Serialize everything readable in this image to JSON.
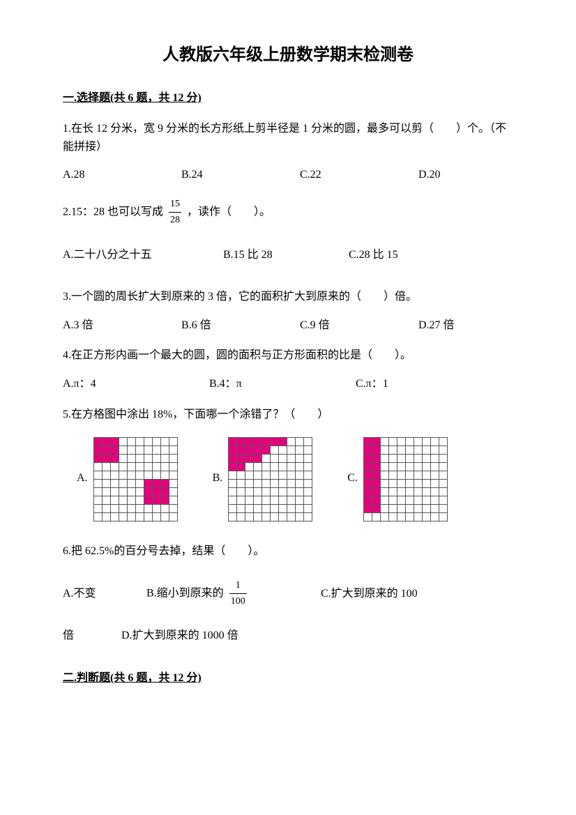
{
  "title": "人教版六年级上册数学期末检测卷",
  "section1": {
    "header": "一.选择题(共 6 题，共 12 分)",
    "q1": {
      "text": "1.在长 12 分米，宽 9 分米的长方形纸上剪半径是 1 分米的圆，最多可以剪（　　）个。（不能拼接）",
      "a": "A.28",
      "b": "B.24",
      "c": "C.22",
      "d": "D.20"
    },
    "q2": {
      "pre": "2.15：28 也可以写成",
      "num": "15",
      "den": "28",
      "post": "，读作（　　）。",
      "a": "A.二十八分之十五",
      "b": "B.15 比 28",
      "c": "C.28 比 15"
    },
    "q3": {
      "text": "3.一个圆的周长扩大到原来的 3 倍，它的面积扩大到原来的（　　）倍。",
      "a": "A.3 倍",
      "b": "B.6 倍",
      "c": "C.9 倍",
      "d": "D.27 倍"
    },
    "q4": {
      "text": "4.在正方形内画一个最大的圆，圆的面积与正方形面积的比是（　　）。",
      "a": "A.π：4",
      "b": "B.4：π",
      "c": "C.π：1"
    },
    "q5": {
      "text": "5.在方格图中涂出 18%，下面哪一个涂错了？（　　）",
      "labelA": "A.",
      "labelB": "B.",
      "labelC": "C.",
      "gridA": {
        "rows": 10,
        "cols": 10,
        "fill_color": "#e6007e",
        "cells": [
          [
            0,
            0
          ],
          [
            0,
            1
          ],
          [
            0,
            2
          ],
          [
            1,
            0
          ],
          [
            1,
            1
          ],
          [
            1,
            2
          ],
          [
            2,
            0
          ],
          [
            2,
            1
          ],
          [
            2,
            2
          ],
          [
            5,
            6
          ],
          [
            5,
            7
          ],
          [
            5,
            8
          ],
          [
            6,
            6
          ],
          [
            6,
            7
          ],
          [
            6,
            8
          ],
          [
            7,
            6
          ],
          [
            7,
            7
          ],
          [
            7,
            8
          ]
        ]
      },
      "gridB": {
        "rows": 10,
        "cols": 10,
        "fill_color": "#e6007e",
        "cells": [
          [
            0,
            0
          ],
          [
            0,
            1
          ],
          [
            0,
            2
          ],
          [
            0,
            3
          ],
          [
            0,
            4
          ],
          [
            0,
            5
          ],
          [
            0,
            6
          ],
          [
            1,
            0
          ],
          [
            1,
            1
          ],
          [
            1,
            2
          ],
          [
            1,
            3
          ],
          [
            1,
            4
          ],
          [
            2,
            0
          ],
          [
            2,
            1
          ],
          [
            2,
            2
          ],
          [
            2,
            3
          ],
          [
            3,
            0
          ],
          [
            3,
            1
          ]
        ]
      },
      "gridC": {
        "rows": 10,
        "cols": 10,
        "fill_color": "#e6007e",
        "cells": [
          [
            0,
            0
          ],
          [
            0,
            1
          ],
          [
            1,
            0
          ],
          [
            1,
            1
          ],
          [
            2,
            0
          ],
          [
            2,
            1
          ],
          [
            3,
            0
          ],
          [
            3,
            1
          ],
          [
            4,
            0
          ],
          [
            4,
            1
          ],
          [
            5,
            0
          ],
          [
            5,
            1
          ],
          [
            6,
            0
          ],
          [
            6,
            1
          ],
          [
            7,
            0
          ],
          [
            7,
            1
          ],
          [
            8,
            0
          ],
          [
            8,
            1
          ]
        ]
      }
    },
    "q6": {
      "text": "6.把 62.5%的百分号去掉，结果（　　）。",
      "a": "A.不变",
      "bpre": "B.缩小到原来的",
      "num": "1",
      "den": "100",
      "c": "C.扩大到原来的 100",
      "line2a": "倍",
      "d": "D.扩大到原来的 1000 倍"
    }
  },
  "section2": {
    "header": "二.判断题(共 6 题，共 12 分)"
  }
}
